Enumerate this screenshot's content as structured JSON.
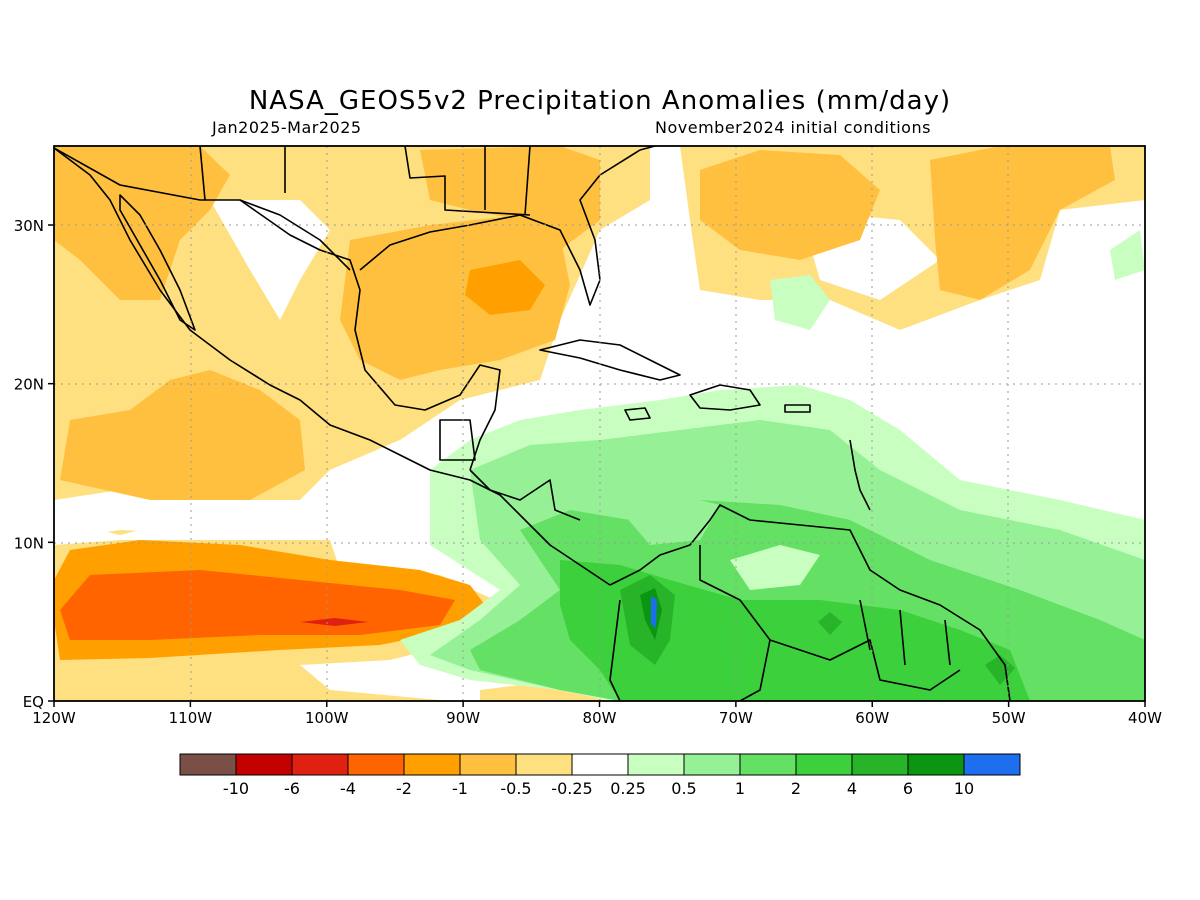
{
  "title": "NASA_GEOS5v2 Precipitation Anomalies (mm/day)",
  "period": "Jan2025-Mar2025",
  "init": "November2024 initial conditions",
  "axes": {
    "lon_labels": [
      "120W",
      "110W",
      "100W",
      "90W",
      "80W",
      "70W",
      "60W",
      "50W",
      "40W"
    ],
    "lat_labels": [
      "EQ",
      "10N",
      "20N",
      "30N"
    ]
  },
  "colorbar": {
    "labels": [
      "-10",
      "-6",
      "-4",
      "-2",
      "-1",
      "-0.5",
      "-0.25",
      "0.25",
      "0.5",
      "1",
      "2",
      "4",
      "6",
      "10"
    ],
    "colors": [
      "#7a5046",
      "#c40000",
      "#e02010",
      "#ff6400",
      "#ffa000",
      "#ffc040",
      "#ffe080",
      "#ffffff",
      "#c8ffc0",
      "#96f096",
      "#64e064",
      "#3cd03c",
      "#28b428",
      "#0a9610",
      "#1e6ef0"
    ]
  }
}
